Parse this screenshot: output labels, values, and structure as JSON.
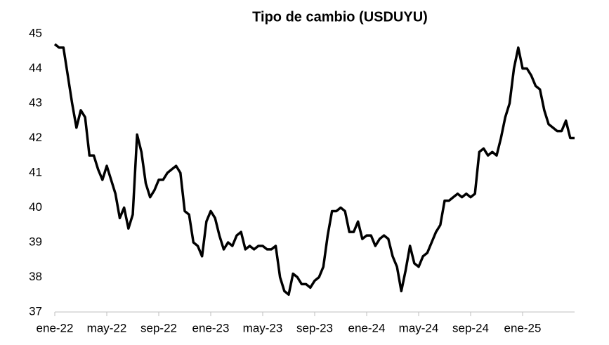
{
  "chart_data": {
    "type": "line",
    "title": "Tipo de cambio (USDUYU)",
    "categories": [
      "ene-22",
      null,
      null,
      null,
      null,
      null,
      null,
      null,
      null,
      null,
      null,
      null,
      "may-22",
      null,
      null,
      null,
      null,
      null,
      null,
      null,
      null,
      null,
      null,
      null,
      "sep-22",
      null,
      null,
      null,
      null,
      null,
      null,
      null,
      null,
      null,
      null,
      null,
      "ene-23",
      null,
      null,
      null,
      null,
      null,
      null,
      null,
      null,
      null,
      null,
      null,
      "may-23",
      null,
      null,
      null,
      null,
      null,
      null,
      null,
      null,
      null,
      null,
      null,
      "sep-23",
      null,
      null,
      null,
      null,
      null,
      null,
      null,
      null,
      null,
      null,
      null,
      "ene-24",
      null,
      null,
      null,
      null,
      null,
      null,
      null,
      null,
      null,
      null,
      null,
      "may-24",
      null,
      null,
      null,
      null,
      null,
      null,
      null,
      null,
      null,
      null,
      null,
      "sep-24",
      null,
      null,
      null,
      null,
      null,
      null,
      null,
      null,
      null,
      null,
      null,
      "ene-25",
      null,
      null,
      null,
      null,
      null,
      null,
      null,
      null,
      null,
      null,
      null,
      null
    ],
    "values": [
      44.7,
      44.6,
      44.6,
      43.8,
      43.0,
      42.3,
      42.8,
      42.6,
      41.5,
      41.5,
      41.1,
      40.8,
      41.2,
      40.8,
      40.4,
      39.7,
      40.0,
      39.4,
      39.8,
      42.1,
      41.6,
      40.7,
      40.3,
      40.5,
      40.8,
      40.8,
      41.0,
      41.1,
      41.2,
      41.0,
      39.9,
      39.8,
      39.0,
      38.9,
      38.6,
      39.6,
      39.9,
      39.7,
      39.2,
      38.8,
      39.0,
      38.9,
      39.2,
      39.3,
      38.8,
      38.9,
      38.8,
      38.9,
      38.9,
      38.8,
      38.8,
      38.9,
      38.0,
      37.6,
      37.5,
      38.1,
      38.0,
      37.8,
      37.8,
      37.7,
      37.9,
      38.0,
      38.3,
      39.2,
      39.9,
      39.9,
      40.0,
      39.9,
      39.3,
      39.3,
      39.6,
      39.1,
      39.2,
      39.2,
      38.9,
      39.1,
      39.2,
      39.1,
      38.6,
      38.3,
      37.6,
      38.2,
      38.9,
      38.4,
      38.3,
      38.6,
      38.7,
      39.0,
      39.3,
      39.5,
      40.2,
      40.2,
      40.3,
      40.4,
      40.3,
      40.4,
      40.3,
      40.4,
      41.6,
      41.7,
      41.5,
      41.6,
      41.5,
      42.0,
      42.6,
      43.0,
      44.0,
      44.6,
      44.0,
      44.0,
      43.8,
      43.5,
      43.4,
      42.8,
      42.4,
      42.3,
      42.2,
      42.2,
      42.5,
      42.0,
      42.0
    ],
    "color": "#000000",
    "ylim": [
      37,
      45
    ],
    "yticks": [
      37,
      38,
      39,
      40,
      41,
      42,
      43,
      44,
      45
    ],
    "grid": false
  }
}
